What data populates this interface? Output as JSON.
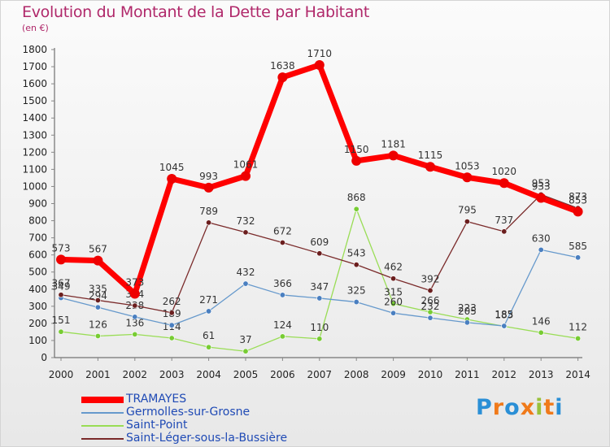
{
  "title": "Evolution du Montant de la Dette par Habitant",
  "subtitle": "(en €)",
  "logo": "Proxiti",
  "colors": {
    "title": "#b0286a",
    "legend_text": "#1f4ab5"
  },
  "chart_data": {
    "type": "line",
    "x": [
      "2000",
      "2001",
      "2002",
      "2003",
      "2004",
      "2005",
      "2006",
      "2007",
      "2008",
      "2009",
      "2010",
      "2011",
      "2012",
      "2013",
      "2014"
    ],
    "ylim": [
      0,
      1800
    ],
    "yticks": [
      0,
      100,
      200,
      300,
      400,
      500,
      600,
      700,
      800,
      900,
      1000,
      1100,
      1200,
      1300,
      1400,
      1500,
      1600,
      1700,
      1800
    ],
    "grid": false,
    "legend_position": "bottom-left",
    "series": [
      {
        "name": "Saint-Point",
        "color": "#99dd55",
        "marker": "#77cc33",
        "values": [
          151,
          126,
          136,
          114,
          61,
          37,
          124,
          110,
          868,
          315,
          266,
          223,
          183,
          146,
          112
        ]
      },
      {
        "name": "Germolles-sur-Grosne",
        "color": "#6699cc",
        "marker": "#4a7fc0",
        "values": [
          349,
          294,
          238,
          189,
          271,
          432,
          366,
          347,
          325,
          260,
          232,
          205,
          185,
          630,
          585
        ]
      },
      {
        "name": "Saint-Léger-sous-la-Bussière",
        "color": "#7a2a2a",
        "marker": "#6b1e1e",
        "values": [
          367,
          335,
          304,
          262,
          789,
          732,
          672,
          609,
          543,
          462,
          392,
          795,
          737,
          953,
          873
        ]
      },
      {
        "name": "TRAMAYES",
        "color": "#ff0000",
        "marker": "#ee0000",
        "values": [
          573,
          567,
          373,
          1045,
          993,
          1061,
          1638,
          1710,
          1150,
          1181,
          1115,
          1053,
          1020,
          933,
          853
        ]
      }
    ],
    "legend_order": [
      "TRAMAYES",
      "Germolles-sur-Grosne",
      "Saint-Point",
      "Saint-Léger-sous-la-Bussière"
    ]
  }
}
